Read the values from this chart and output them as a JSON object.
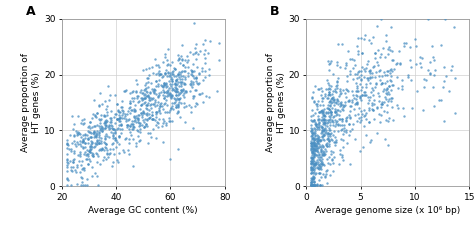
{
  "panel_A": {
    "label": "A",
    "xlabel": "Average GC content (%)",
    "ylabel": "Average proportion of\nHT genes (%)",
    "xlim": [
      20,
      80
    ],
    "ylim": [
      0,
      30
    ],
    "xticks": [
      20,
      40,
      60,
      80
    ],
    "yticks": [
      0,
      10,
      20,
      30
    ],
    "dot_color": "#4a8fc2",
    "dot_size": 3,
    "n_points": 900
  },
  "panel_B": {
    "label": "B",
    "xlabel": "Average genome size (x 10⁶ bp)",
    "ylabel": "Average proportion of\nHT genes (%)",
    "xlim": [
      0,
      15
    ],
    "ylim": [
      0,
      30
    ],
    "xticks": [
      0,
      5,
      10,
      15
    ],
    "yticks": [
      0,
      10,
      20,
      30
    ],
    "dot_color": "#4a8fc2",
    "dot_size": 3,
    "n_points": 900
  },
  "fig_width": 4.74,
  "fig_height": 2.33,
  "dpi": 100,
  "font_size": 6.5,
  "label_font_size": 9,
  "grid_color": "#d0d0d0",
  "background_color": "#ffffff"
}
